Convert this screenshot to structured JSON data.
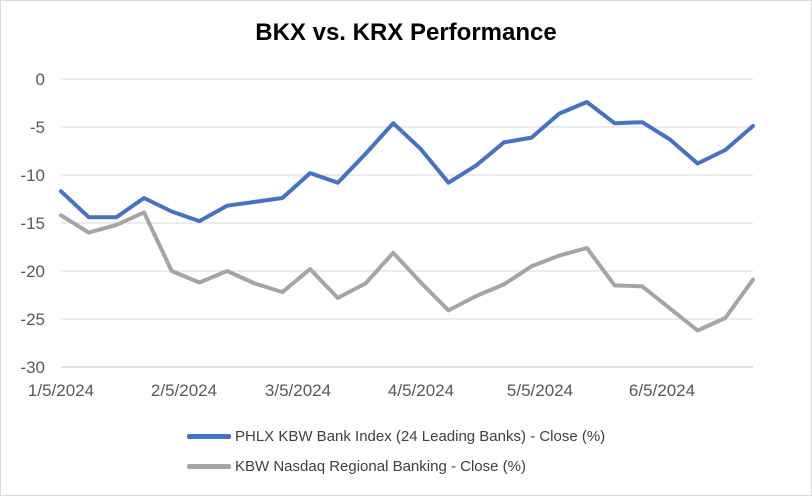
{
  "chart_data": {
    "type": "line",
    "title": "BKX vs. KRX Performance",
    "xlabel": "",
    "ylabel": "",
    "ylim": [
      -30,
      0
    ],
    "yticks": [
      "0",
      "-5",
      "-10",
      "-15",
      "-20",
      "-25",
      "-30"
    ],
    "xticks": [
      "1/5/2024",
      "2/5/2024",
      "3/5/2024",
      "4/5/2024",
      "5/5/2024",
      "6/5/2024"
    ],
    "grid": true,
    "legend_position": "bottom",
    "series": [
      {
        "name": "PHLX KBW Bank Index (24 Leading Banks) - Close (%)",
        "color": "#4472c4",
        "values": [
          -11.7,
          -14.4,
          -14.4,
          -12.4,
          -13.8,
          -14.8,
          -13.2,
          -12.8,
          -12.4,
          -9.8,
          -10.8,
          -7.8,
          -4.6,
          -7.3,
          -10.8,
          -9.0,
          -6.6,
          -6.1,
          -3.6,
          -2.4,
          -4.6,
          -4.5,
          -6.3,
          -8.8,
          -7.4,
          -4.9
        ]
      },
      {
        "name": "KBW Nasdaq Regional Banking - Close (%)",
        "color": "#a5a5a5",
        "values": [
          -14.2,
          -16.0,
          -15.2,
          -13.9,
          -20.0,
          -21.2,
          -20.0,
          -21.3,
          -22.2,
          -19.8,
          -22.8,
          -21.3,
          -18.1,
          -21.2,
          -24.1,
          -22.6,
          -21.4,
          -19.5,
          -18.4,
          -17.6,
          -21.5,
          -21.6,
          -23.9,
          -26.2,
          -24.9,
          -20.9
        ]
      }
    ]
  }
}
